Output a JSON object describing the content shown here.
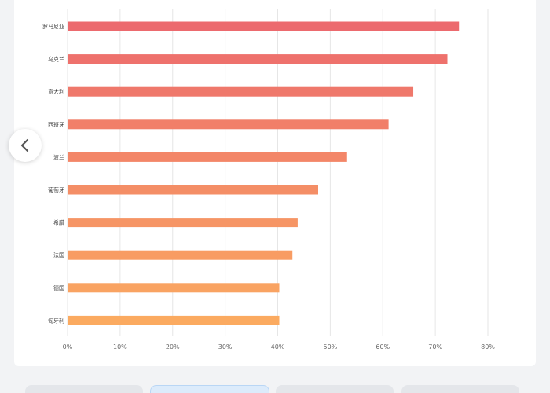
{
  "chart_data": {
    "type": "bar",
    "orientation": "horizontal",
    "categories": [
      "罗马尼亚",
      "乌克兰",
      "意大利",
      "西班牙",
      "波兰",
      "葡萄牙",
      "希腊",
      "法国",
      "德国",
      "匈牙利"
    ],
    "values": [
      74.5,
      72.3,
      65.8,
      61.1,
      53.2,
      47.7,
      43.8,
      42.8,
      40.3,
      40.3
    ],
    "xlim": [
      0,
      80
    ],
    "xticks": [
      "0%",
      "10%",
      "20%",
      "30%",
      "40%",
      "50%",
      "60%",
      "70%",
      "80%"
    ],
    "grid": true,
    "legend": "none",
    "colors": {
      "bar_top": "#ec6a6e",
      "bar_bottom": "#fbaa60"
    }
  },
  "ui": {
    "prev_button_icon": "chevron-left-icon",
    "thumbnails": 4,
    "active_thumbnail": 1
  }
}
